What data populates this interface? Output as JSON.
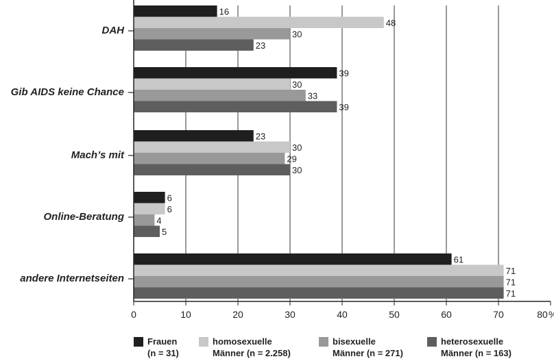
{
  "chart_data": {
    "type": "bar",
    "orientation": "horizontal",
    "categories": [
      "DAH",
      "Gib AIDS keine Chance",
      "Mach’s mit",
      "Online-Beratung",
      "andere Internetseiten"
    ],
    "series": [
      {
        "name": "Frauen (n = 31)",
        "name_lines": [
          "Frauen",
          "(n = 31)"
        ],
        "color": "#1f1f1f",
        "values": [
          16,
          39,
          23,
          6,
          61
        ]
      },
      {
        "name": "homosexuelle Männer (n = 2.258)",
        "name_lines": [
          "homosexuelle",
          "Männer (n = 2.258)"
        ],
        "color": "#c8c8c8",
        "values": [
          48,
          30,
          30,
          6,
          71
        ]
      },
      {
        "name": "bisexuelle Männer (n = 271)",
        "name_lines": [
          "bisexuelle",
          "Männer (n = 271)"
        ],
        "color": "#999999",
        "values": [
          30,
          33,
          29,
          4,
          71
        ]
      },
      {
        "name": "heterosexuelle Männer (n = 163)",
        "name_lines": [
          "heterosexuelle",
          "Männer (n = 163)"
        ],
        "color": "#5e5e5e",
        "values": [
          23,
          39,
          30,
          5,
          71
        ]
      }
    ],
    "xlim": [
      0,
      80
    ],
    "xticks": [
      "0",
      "10",
      "20",
      "30",
      "40",
      "50",
      "60",
      "70",
      "80"
    ],
    "x_unit": "%",
    "grid": "vertical",
    "legend_position": "bottom"
  }
}
